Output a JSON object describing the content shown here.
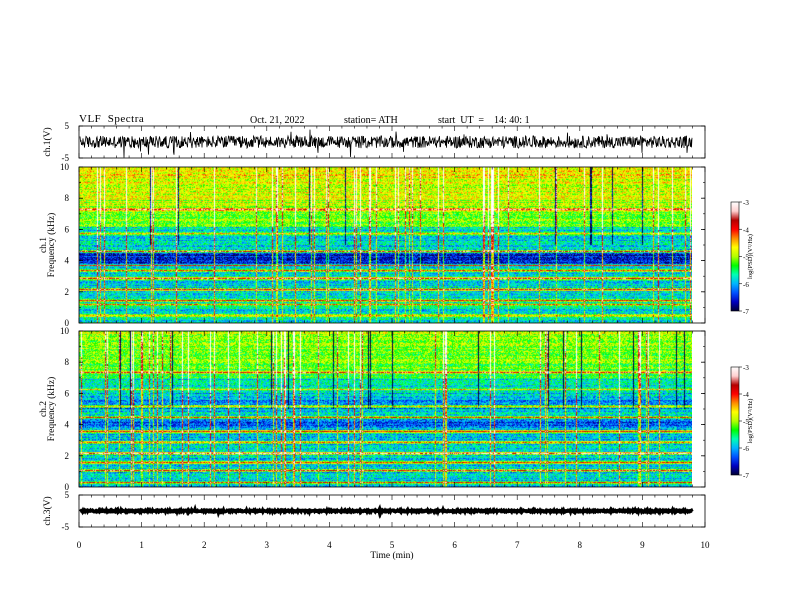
{
  "header": {
    "title": "VLF  Spectra",
    "date": "Oct. 21, 2022",
    "station": "station= ATH",
    "start": "start  UT  =    14: 40: 1"
  },
  "chart_data": {
    "type": "heatmap",
    "xlabel": "Time  (min)",
    "xlim": [
      0,
      10
    ],
    "xticks": [
      "0",
      "1",
      "2",
      "3",
      "4",
      "5",
      "6",
      "7",
      "8",
      "9",
      "10"
    ],
    "data_end_min": 9.8,
    "panels": [
      {
        "kind": "waveform",
        "ylabel": "ch.1(V)",
        "ylim": [
          -5,
          5
        ],
        "yticks": [
          "5",
          "-5"
        ],
        "baseline": 0,
        "noise_amplitude": 1.2
      },
      {
        "kind": "spectrogram",
        "ylabel": "ch.1\nFrequency  (kHz)",
        "ylim": [
          0,
          10
        ],
        "yticks": [
          "0",
          "2",
          "4",
          "6",
          "8",
          "10"
        ],
        "colorbar_label": "log(PSD)(V²/Hz)",
        "colorbar_range": [
          -7,
          -3
        ],
        "colorbar_ticks": [
          "-3",
          "-4",
          "-5",
          "-6",
          "-7"
        ]
      },
      {
        "kind": "spectrogram",
        "ylabel": "ch.2\nFrequency  (kHz)",
        "ylim": [
          0,
          10
        ],
        "yticks": [
          "0",
          "2",
          "4",
          "6",
          "8",
          "10"
        ],
        "colorbar_label": "log(PSD)(V²/Hz)",
        "colorbar_range": [
          -7,
          -3
        ],
        "colorbar_ticks": [
          "-3",
          "-4",
          "-5",
          "-6",
          "-7"
        ]
      },
      {
        "kind": "waveform",
        "ylabel": "ch.3(V)",
        "ylim": [
          -5,
          5
        ],
        "yticks": [
          "5",
          "-5"
        ],
        "baseline": 0,
        "noise_amplitude": 0.15
      }
    ],
    "colormap": [
      "#000033",
      "#0000c0",
      "#0050ff",
      "#00b4ff",
      "#00ffb4",
      "#00ff00",
      "#b4ff00",
      "#ffff00",
      "#ff8c00",
      "#ff0000",
      "#b40000",
      "#ffd0d0",
      "#ffffff"
    ]
  }
}
